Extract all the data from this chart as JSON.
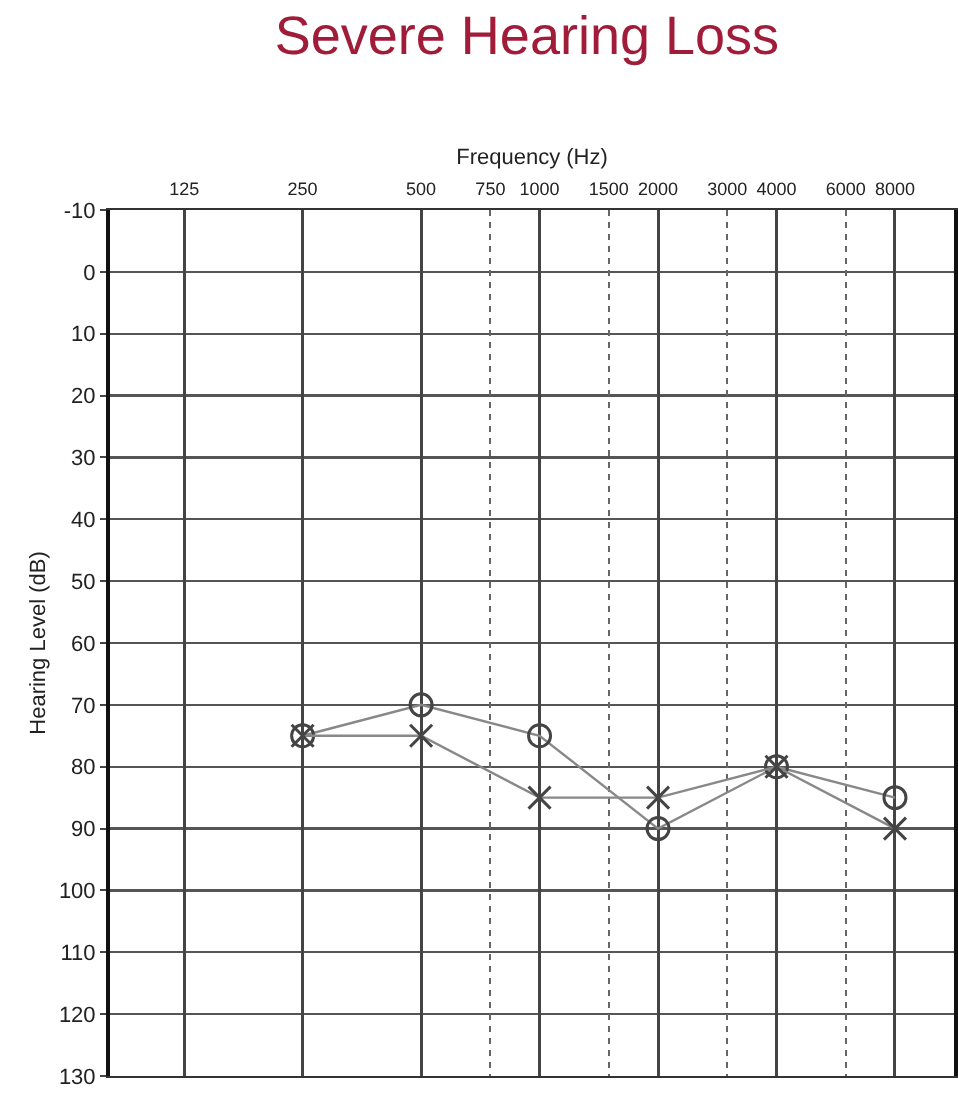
{
  "chart_data": {
    "type": "line",
    "title": "Severe Hearing Loss",
    "xlabel": "Frequency (Hz)",
    "ylabel": "Hearing Level (dB)",
    "log": "x",
    "x": [
      250,
      500,
      1000,
      2000,
      4000,
      8000
    ],
    "xlim": [
      81,
      11300
    ],
    "xticks": [
      125,
      250,
      500,
      750,
      1000,
      1500,
      2000,
      3000,
      4000,
      6000,
      8000
    ],
    "ylim": [
      130,
      -10
    ],
    "yticks": [
      -10,
      0,
      10,
      20,
      30,
      40,
      50,
      60,
      70,
      80,
      90,
      100,
      110,
      120,
      130
    ],
    "grid": true,
    "series": [
      {
        "color": "#444444",
        "marker": "circle",
        "values": [
          75,
          70,
          75,
          90,
          80,
          85
        ]
      },
      {
        "color": "#444444",
        "marker": "cross",
        "values": [
          75,
          75,
          85,
          85,
          80,
          90
        ]
      }
    ]
  }
}
